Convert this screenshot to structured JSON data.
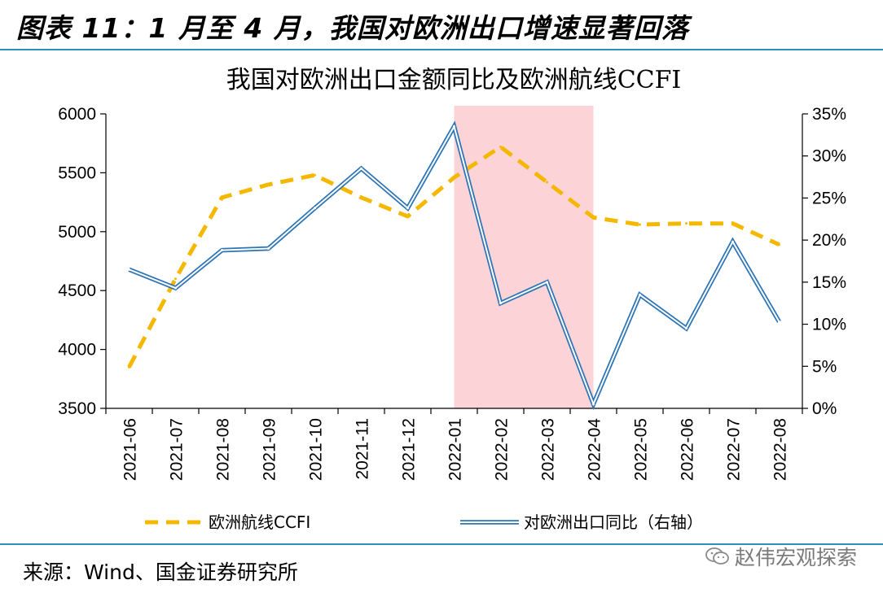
{
  "figure": {
    "title": "图表 11：1 月至 4 月，我国对欧洲出口增速显著回落",
    "source": "来源：Wind、国金证券研究所",
    "watermark": "赵伟宏观探索",
    "watermark_icon": "wechat-icon"
  },
  "chart_data": {
    "type": "line",
    "title": "我国对欧洲出口金额同比及欧洲航线CCFI",
    "categories": [
      "2021-06",
      "2021-07",
      "2021-08",
      "2021-09",
      "2021-10",
      "2021-11",
      "2021-12",
      "2022-01",
      "2022-02",
      "2022-03",
      "2022-04",
      "2022-05",
      "2022-06",
      "2022-07",
      "2022-08"
    ],
    "left_axis": {
      "ylim": [
        3500,
        6000
      ],
      "ticks": [
        "6000",
        "5500",
        "5000",
        "4500",
        "4000",
        "3500"
      ]
    },
    "right_axis": {
      "ylim": [
        0,
        35
      ],
      "ticks": [
        "35%",
        "30%",
        "25%",
        "20%",
        "15%",
        "10%",
        "5%",
        "0%"
      ]
    },
    "highlight": {
      "from": "2022-01",
      "to": "2022-04",
      "color": "#fcd3d6"
    },
    "series": [
      {
        "name": "欧洲航线CCFI",
        "axis": "left",
        "style": "dashed",
        "color": "#f5b800",
        "values": [
          3850,
          4600,
          5290,
          5400,
          5480,
          5290,
          5130,
          5460,
          5720,
          5420,
          5120,
          5060,
          5070,
          5070,
          4890
        ]
      },
      {
        "name": "对欧洲出口同比（右轴）",
        "axis": "right",
        "style": "double",
        "color": "#2e75b6",
        "values": [
          16.5,
          14.3,
          18.8,
          19.0,
          23.8,
          28.5,
          23.8,
          33.5,
          12.5,
          15.0,
          0.5,
          13.5,
          9.5,
          19.8,
          10.3
        ]
      }
    ],
    "grid": false,
    "legend_position": "bottom"
  }
}
